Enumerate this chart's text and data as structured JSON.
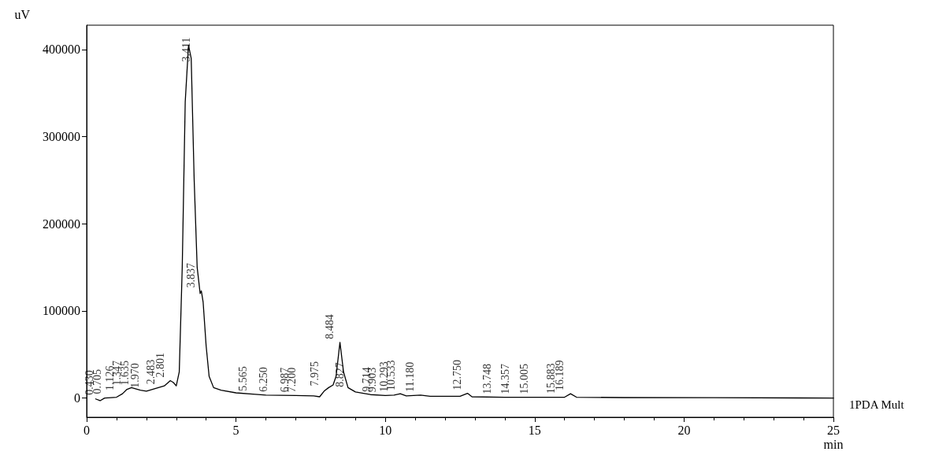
{
  "chart_data": {
    "type": "line",
    "xlabel": "min",
    "ylabel": "uV",
    "xlim": [
      0,
      25
    ],
    "ylim": [
      -22000,
      428000
    ],
    "xticks": [
      0,
      5,
      10,
      15,
      20,
      25
    ],
    "yticks": [
      0,
      100000,
      200000,
      300000,
      400000
    ],
    "grid": false,
    "legend": false,
    "marker": "none",
    "line_style": "solid",
    "series": [
      {
        "name": "1PDA Mult",
        "color": "#000000",
        "x": [
          0.3,
          0.45,
          0.6,
          1.0,
          1.2,
          1.35,
          1.5,
          1.8,
          2.0,
          2.2,
          2.4,
          2.6,
          2.8,
          2.9,
          3.0,
          3.1,
          3.2,
          3.3,
          3.41,
          3.5,
          3.6,
          3.7,
          3.8,
          3.84,
          3.9,
          4.0,
          4.1,
          4.25,
          4.5,
          5.0,
          5.565,
          6.0,
          7.0,
          7.6,
          7.8,
          7.95,
          8.1,
          8.25,
          8.35,
          8.48,
          8.6,
          8.75,
          9.0,
          9.5,
          10.0,
          10.29,
          10.5,
          10.7,
          11.18,
          11.5,
          12.5,
          12.75,
          12.9,
          14.0,
          16.0,
          16.2,
          16.4,
          18.0,
          21.0,
          25.0
        ],
        "values": [
          -1000,
          -3000,
          0,
          1000,
          5000,
          10000,
          12000,
          9000,
          8000,
          10000,
          12000,
          14000,
          20000,
          18000,
          14000,
          30000,
          150000,
          340000,
          405000,
          390000,
          250000,
          150000,
          120000,
          123000,
          110000,
          60000,
          25000,
          12000,
          9000,
          6000,
          4500,
          3500,
          3000,
          2500,
          1500,
          8000,
          12000,
          15000,
          25000,
          64000,
          30000,
          12000,
          7000,
          4000,
          3000,
          3500,
          5000,
          2500,
          3500,
          2000,
          2000,
          5500,
          1500,
          1000,
          1000,
          5000,
          1000,
          600,
          500,
          0
        ]
      }
    ],
    "annotations": [
      {
        "text": "0.430",
        "x": 0.43,
        "y": 0
      },
      {
        "text": "0.705",
        "x": 0.705,
        "y": 1000
      },
      {
        "text": "1.126",
        "x": 1.126,
        "y": 5000
      },
      {
        "text": "1.347",
        "x": 1.347,
        "y": 11000
      },
      {
        "text": "1.635",
        "x": 1.635,
        "y": 11000
      },
      {
        "text": "1.970",
        "x": 1.97,
        "y": 8000
      },
      {
        "text": "2.483",
        "x": 2.483,
        "y": 12000
      },
      {
        "text": "2.801",
        "x": 2.801,
        "y": 20000
      },
      {
        "text": "3.411",
        "x": 3.411,
        "y": 405000
      },
      {
        "text": "3.837",
        "x": 3.837,
        "y": 123000
      },
      {
        "text": "5.565",
        "x": 5.565,
        "y": 4500
      },
      {
        "text": "6.250",
        "x": 6.25,
        "y": 3500
      },
      {
        "text": "6.987",
        "x": 6.987,
        "y": 3000
      },
      {
        "text": "7.200",
        "x": 7.2,
        "y": 3000
      },
      {
        "text": "7.975",
        "x": 7.975,
        "y": 10000
      },
      {
        "text": "8.484",
        "x": 8.484,
        "y": 64000
      },
      {
        "text": "8.827",
        "x": 8.827,
        "y": 9000
      },
      {
        "text": "9.714",
        "x": 9.714,
        "y": 3500
      },
      {
        "text": "9.903",
        "x": 9.903,
        "y": 3000
      },
      {
        "text": "10.293",
        "x": 10.293,
        "y": 3500
      },
      {
        "text": "10.533",
        "x": 10.533,
        "y": 5000
      },
      {
        "text": "11.180",
        "x": 11.18,
        "y": 3500
      },
      {
        "text": "12.750",
        "x": 12.75,
        "y": 5500
      },
      {
        "text": "13.748",
        "x": 13.748,
        "y": 1000
      },
      {
        "text": "14.357",
        "x": 14.357,
        "y": 1000
      },
      {
        "text": "15.005",
        "x": 15.005,
        "y": 1000
      },
      {
        "text": "15.883",
        "x": 15.883,
        "y": 1500
      },
      {
        "text": "16.189",
        "x": 16.189,
        "y": 5000
      }
    ]
  }
}
